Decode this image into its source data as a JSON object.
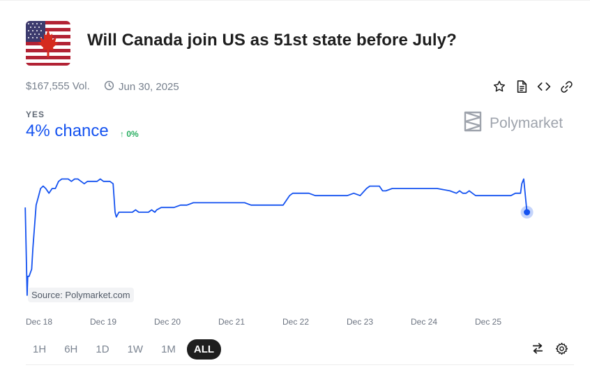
{
  "market": {
    "title": "Will Canada join US as 51st state before July?",
    "volume": "$167,555 Vol.",
    "end_date": "Jun 30, 2025"
  },
  "outcome": {
    "label": "YES",
    "chance": "4% chance",
    "change": "0%"
  },
  "brand": {
    "name": "Polymarket"
  },
  "source_label": "Source: Polymarket.com",
  "actions": {
    "icons": [
      "star-icon",
      "document-icon",
      "code-icon",
      "link-icon"
    ]
  },
  "ranges": [
    "1H",
    "6H",
    "1D",
    "1W",
    "1M",
    "ALL"
  ],
  "active_range": "ALL",
  "tools": [
    "swap-icon",
    "gear-icon"
  ],
  "colors": {
    "line": "#1452f0",
    "up": "#27ae60",
    "title": "#1e1e1e"
  },
  "chart_data": {
    "type": "line",
    "x_tick_labels": [
      "Dec 18",
      "Dec 19",
      "Dec 20",
      "Dec 21",
      "Dec 22",
      "Dec 23",
      "Dec 24",
      "Dec 25"
    ],
    "x_days": [
      18,
      19,
      20,
      21,
      22,
      23,
      24,
      25
    ],
    "series": [
      {
        "x": [
          17.98,
          18.01,
          18.02,
          18.04,
          18.08,
          18.1,
          18.15,
          18.18,
          18.22,
          18.26,
          18.3,
          18.35,
          18.4,
          18.45,
          18.5,
          18.55,
          18.6,
          18.65,
          18.7,
          18.75,
          18.8,
          18.85,
          18.9,
          18.95,
          19.0,
          19.05,
          19.1,
          19.15,
          19.2,
          19.25,
          19.3,
          19.35,
          19.38,
          19.4,
          19.44,
          19.47,
          19.5,
          19.55,
          19.6,
          19.65,
          19.7,
          19.75,
          19.8,
          19.85,
          19.9,
          19.95,
          20.0,
          20.03,
          20.1,
          20.2,
          20.3,
          20.4,
          20.5,
          20.6,
          20.8,
          21.0,
          21.2,
          21.4,
          21.5,
          21.6,
          21.8,
          22.0,
          22.1,
          22.15,
          22.3,
          22.4,
          22.5,
          22.6,
          22.8,
          23.0,
          23.1,
          23.2,
          23.3,
          23.35,
          23.4,
          23.5,
          23.55,
          23.6,
          23.7,
          23.8,
          23.9,
          24.0,
          24.2,
          24.4,
          24.6,
          24.7,
          24.75,
          24.8,
          24.85,
          24.9,
          24.95,
          25.0,
          25.05,
          25.1,
          25.2,
          25.4,
          25.55,
          25.62,
          25.66,
          25.7,
          25.72,
          25.75,
          25.8
        ],
        "y": [
          4.2,
          0.5,
          1.3,
          1.3,
          1.6,
          2.5,
          4.3,
          4.6,
          5.0,
          5.1,
          5.0,
          4.8,
          5.0,
          5.0,
          5.3,
          5.4,
          5.4,
          5.4,
          5.3,
          5.4,
          5.4,
          5.3,
          5.2,
          5.3,
          5.3,
          5.3,
          5.3,
          5.4,
          5.3,
          5.3,
          5.3,
          5.2,
          4.0,
          3.8,
          4.0,
          4.0,
          4.0,
          4.0,
          4.0,
          4.0,
          4.1,
          4.0,
          4.0,
          4.0,
          4.0,
          4.1,
          4.0,
          4.1,
          4.2,
          4.2,
          4.2,
          4.3,
          4.3,
          4.4,
          4.4,
          4.4,
          4.4,
          4.4,
          4.3,
          4.3,
          4.3,
          4.3,
          4.7,
          4.8,
          4.8,
          4.8,
          4.7,
          4.7,
          4.7,
          4.7,
          4.8,
          4.7,
          5.0,
          5.1,
          5.1,
          5.1,
          4.9,
          4.9,
          5.0,
          5.0,
          5.0,
          5.0,
          5.0,
          5.0,
          4.9,
          4.8,
          4.9,
          4.8,
          4.8,
          4.9,
          4.8,
          4.7,
          4.7,
          4.7,
          4.7,
          4.7,
          4.7,
          4.8,
          4.8,
          4.8,
          5.2,
          5.4,
          4.0
        ],
        "last_point": {
          "x": 25.8,
          "y": 4.0
        }
      }
    ]
  }
}
